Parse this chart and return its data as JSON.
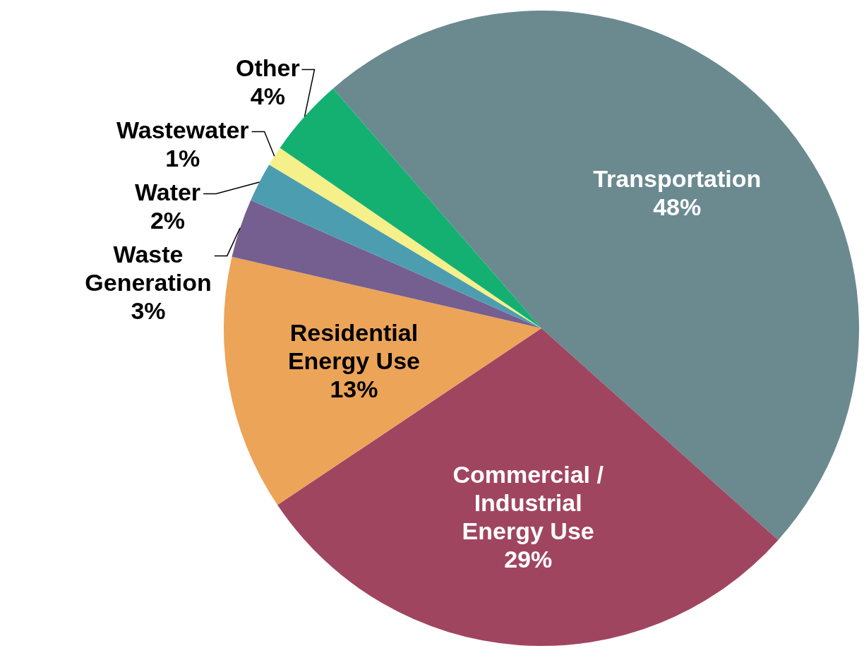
{
  "chart_data": {
    "type": "pie",
    "categories": [
      "Transportation",
      "Commercial / Industrial Energy Use",
      "Residential Energy Use",
      "Waste Generation",
      "Water",
      "Wastewater",
      "Other"
    ],
    "values": [
      48,
      29,
      13,
      3,
      2,
      1,
      4
    ],
    "value_labels": [
      "48%",
      "29%",
      "13%",
      "3%",
      "2%",
      "1%",
      "4%"
    ],
    "colors": [
      "#6a8a90",
      "#a04560",
      "#eca458",
      "#755f91",
      "#4d9db0",
      "#f5f08a",
      "#14b072"
    ],
    "legend": false
  }
}
